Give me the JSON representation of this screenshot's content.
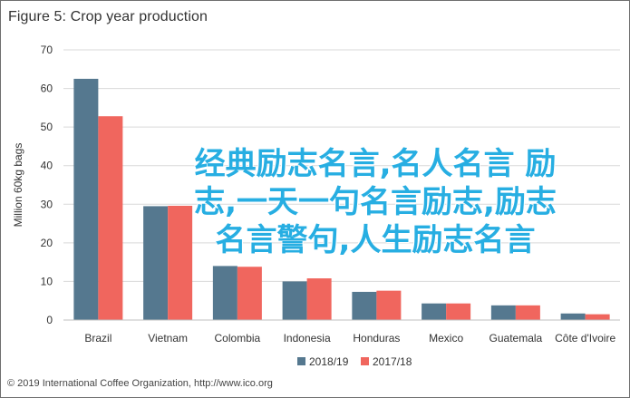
{
  "title": "Figure 5: Crop year production",
  "credit": "© 2019 International Coffee Organization, http://www.ico.org",
  "overlay_text": "经典励志名言,名人名言 励志,一天一句名言励志,励志名言警句,人生励志名言",
  "colors": {
    "series_2018": "#55788f",
    "series_2017": "#f0665e",
    "grid": "#d9d9d9",
    "overlay": "#27aee2"
  },
  "chart_data": {
    "type": "bar",
    "title": "Figure 5: Crop year production",
    "xlabel": "",
    "ylabel": "Million 60kg bags",
    "ylim": [
      0,
      70
    ],
    "yticks": [
      0,
      10,
      20,
      30,
      40,
      50,
      60,
      70
    ],
    "grid": true,
    "legend_position": "bottom",
    "categories": [
      "Brazil",
      "Vietnam",
      "Colombia",
      "Indonesia",
      "Honduras",
      "Mexico",
      "Guatemala",
      "Côte d'Ivoire"
    ],
    "category_labels": [
      "Brazil",
      "Vietnam",
      "Colombia",
      "Indonesia",
      "Honduras",
      "Mexico",
      "Guatemala",
      "Côte d'Ivoire"
    ],
    "series": [
      {
        "name": "2018/19",
        "color": "#55788f",
        "values": [
          62.5,
          29.5,
          14.0,
          10.0,
          7.3,
          4.3,
          3.8,
          1.7
        ]
      },
      {
        "name": "2017/18",
        "color": "#f0665e",
        "values": [
          52.8,
          29.6,
          13.8,
          10.8,
          7.6,
          4.3,
          3.8,
          1.5
        ]
      }
    ]
  }
}
